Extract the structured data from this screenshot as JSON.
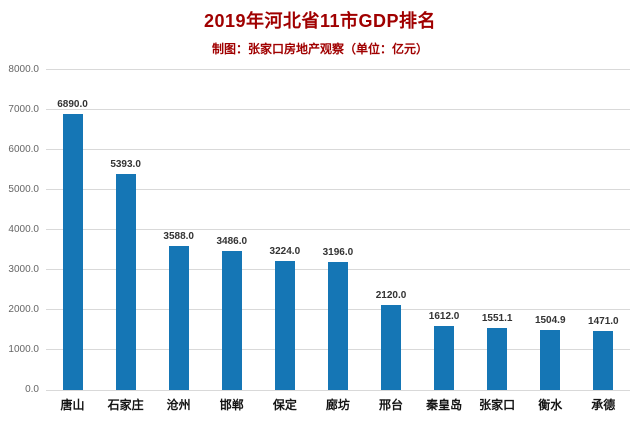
{
  "chart_data": {
    "type": "bar",
    "title": "2019年河北省11市GDP排名",
    "subtitle": "制图：张家口房地产观察（单位：亿元）",
    "unit": "亿元",
    "categories": [
      "唐山",
      "石家庄",
      "沧州",
      "邯郸",
      "保定",
      "廊坊",
      "邢台",
      "秦皇岛",
      "张家口",
      "衡水",
      "承德"
    ],
    "values": [
      6890.0,
      5393.0,
      3588.0,
      3486.0,
      3224.0,
      3196.0,
      2120.0,
      1612.0,
      1551.1,
      1504.9,
      1471.0
    ],
    "value_labels": [
      "6890.0",
      "5393.0",
      "3588.0",
      "3486.0",
      "3224.0",
      "3196.0",
      "2120.0",
      "1612.0",
      "1551.1",
      "1504.9",
      "1471.0"
    ],
    "ytick_labels": [
      "0.0",
      "1000.0",
      "2000.0",
      "3000.0",
      "4000.0",
      "5000.0",
      "6000.0",
      "7000.0",
      "8000.0"
    ],
    "ylim": [
      0,
      8000
    ],
    "ytick_step": 1000,
    "grid": "horizontal",
    "legend": "none",
    "xlabel": "",
    "ylabel": "",
    "colors": {
      "bar": "#1576b5",
      "title": "#a00000",
      "subtitle": "#a00000",
      "grid": "#d9d9d9",
      "tick_label": "#666666",
      "value_label": "#333333",
      "category_label": "#141414",
      "background": "#ffffff"
    }
  }
}
